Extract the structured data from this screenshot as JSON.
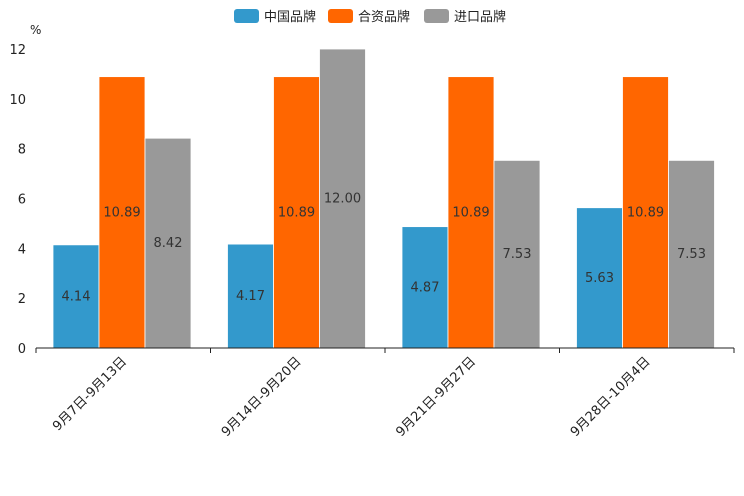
{
  "chart_data": {
    "type": "bar",
    "unit": "%",
    "categories": [
      "9月7日-9月13日",
      "9月14日-9月20日",
      "9月21日-9月27日",
      "9月28日-10月4日"
    ],
    "series": [
      {
        "name": "中国品牌",
        "color": "#3399cc",
        "values": [
          4.14,
          4.17,
          4.87,
          5.63
        ],
        "labels": [
          "4.14",
          "4.17",
          "4.87",
          "5.63"
        ]
      },
      {
        "name": "合资品牌",
        "color": "#ff6600",
        "values": [
          10.89,
          10.89,
          10.89,
          10.89
        ],
        "labels": [
          "10.89",
          "10.89",
          "10.89",
          "10.89"
        ]
      },
      {
        "name": "进口品牌",
        "color": "#999999",
        "values": [
          8.42,
          12.0,
          7.53,
          7.53
        ],
        "labels": [
          "8.42",
          "12.00",
          "7.53",
          "7.53"
        ]
      }
    ],
    "ylim": [
      0,
      12
    ],
    "yticks": [
      "0",
      "2",
      "4",
      "6",
      "8",
      "10",
      "12"
    ],
    "legend_position": "top-center",
    "grid": false
  }
}
